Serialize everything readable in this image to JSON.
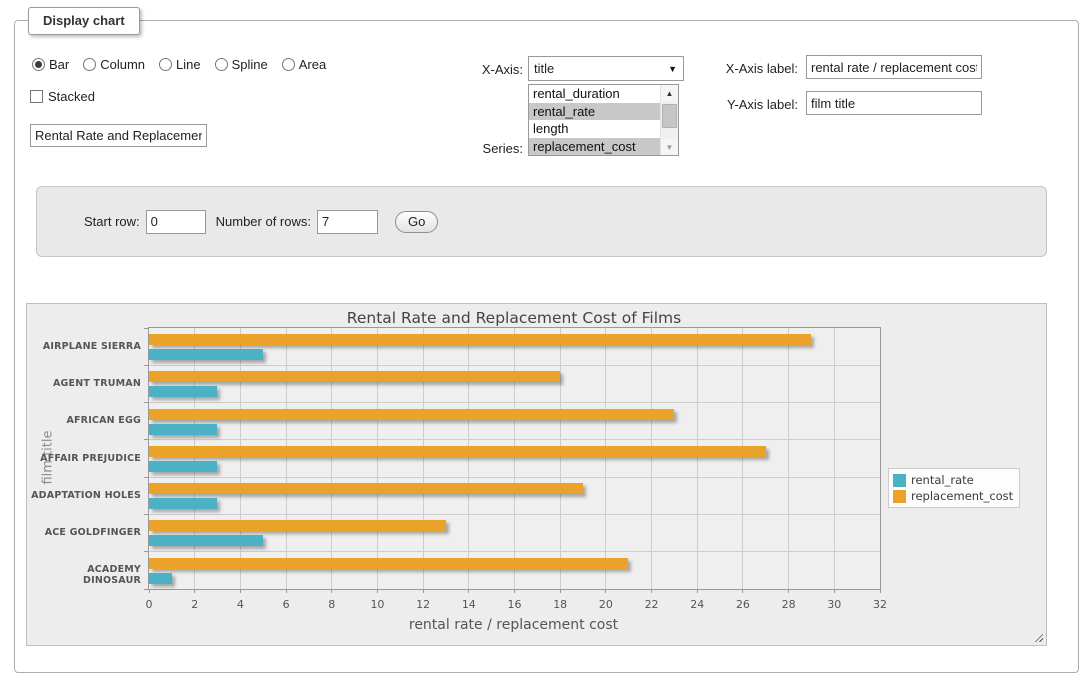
{
  "window": {
    "legend": "Display chart"
  },
  "controls": {
    "chart_types": [
      {
        "label": "Bar",
        "selected": true
      },
      {
        "label": "Column",
        "selected": false
      },
      {
        "label": "Line",
        "selected": false
      },
      {
        "label": "Spline",
        "selected": false
      },
      {
        "label": "Area",
        "selected": false
      }
    ],
    "stacked": {
      "label": "Stacked",
      "checked": false
    },
    "chart_title_input": {
      "value": "Rental Rate and Replacement Cost of Films"
    },
    "x_axis": {
      "label": "X-Axis:",
      "selected_value": "title",
      "arrow_icon": "▼"
    },
    "series": {
      "label": "Series:",
      "options": [
        {
          "label": "rental_duration",
          "selected": false
        },
        {
          "label": "rental_rate",
          "selected": true
        },
        {
          "label": "length",
          "selected": false
        },
        {
          "label": "replacement_cost",
          "selected": true
        }
      ],
      "scrollbar": {
        "up_icon": "▲",
        "down_icon": "▼"
      }
    },
    "x_axis_label_field": {
      "label": "X-Axis label:",
      "value": "rental rate / replacement cost"
    },
    "y_axis_label_field": {
      "label": "Y-Axis label:",
      "value": "film title"
    }
  },
  "row_controls": {
    "start_row_label": "Start row:",
    "start_row_value": "0",
    "num_rows_label": "Number of rows:",
    "num_rows_value": "7",
    "go_label": "Go"
  },
  "chart_data": {
    "type": "bar",
    "orientation": "horizontal",
    "title": "Rental Rate and Replacement Cost of Films",
    "xlabel": "rental rate / replacement cost",
    "ylabel": "film title",
    "categories": [
      "AIRPLANE SIERRA",
      "AGENT TRUMAN",
      "AFRICAN EGG",
      "AFFAIR PREJUDICE",
      "ADAPTATION HOLES",
      "ACE GOLDFINGER",
      "ACADEMY DINOSAUR"
    ],
    "series": [
      {
        "name": "rental_rate",
        "color": "#4bb2c5",
        "values": [
          4.99,
          2.99,
          2.99,
          2.99,
          2.99,
          4.99,
          0.99
        ]
      },
      {
        "name": "replacement_cost",
        "color": "#eaa228",
        "values": [
          28.99,
          17.99,
          22.99,
          26.99,
          18.99,
          12.99,
          20.99
        ]
      }
    ],
    "series_draw_order_top_to_bottom": [
      "replacement_cost",
      "rental_rate"
    ],
    "xlim": [
      0,
      32
    ],
    "x_ticks": [
      0,
      2,
      4,
      6,
      8,
      10,
      12,
      14,
      16,
      18,
      20,
      22,
      24,
      26,
      28,
      30,
      32
    ],
    "grid": true,
    "legend_position": "right-outside"
  }
}
